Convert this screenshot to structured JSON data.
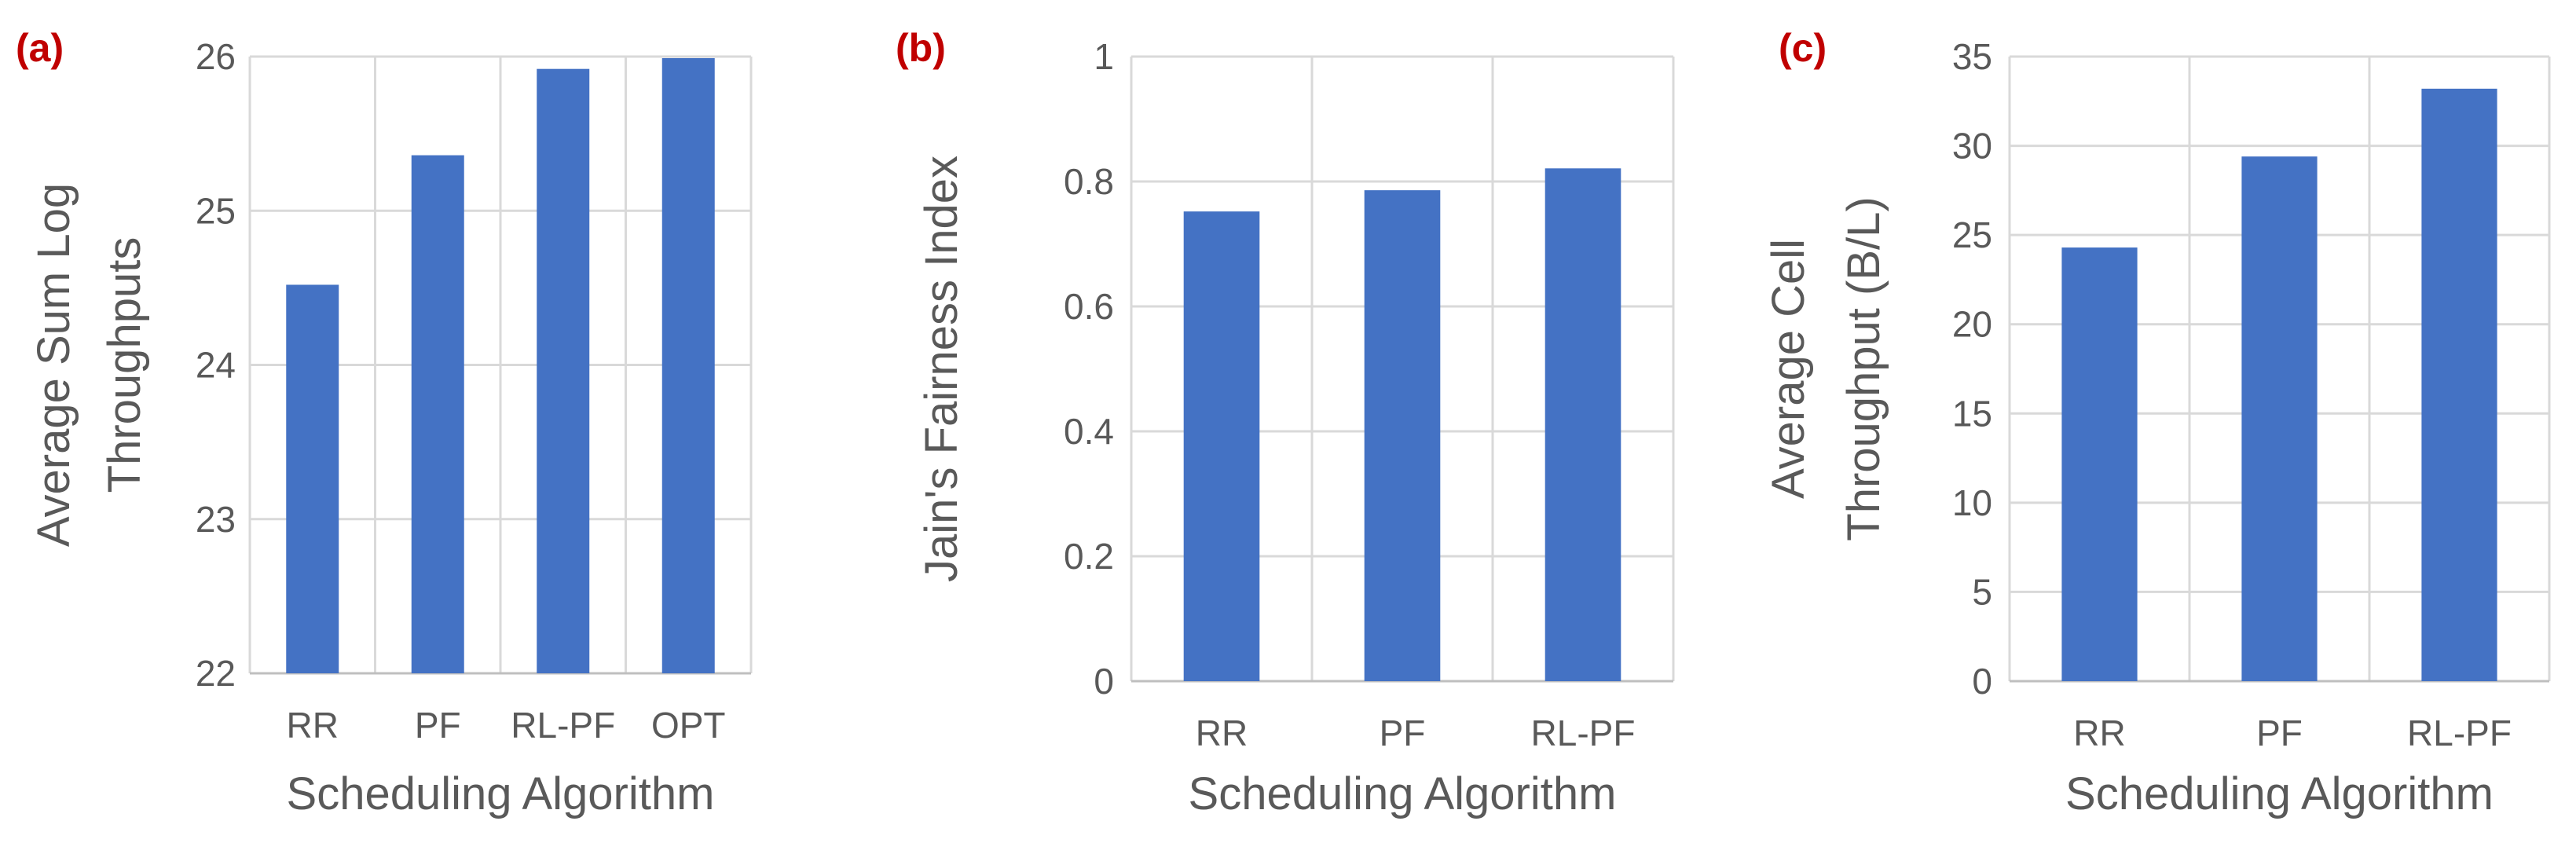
{
  "chart_data": [
    {
      "type": "bar",
      "panel_label": "(a)",
      "categories": [
        "RR",
        "PF",
        "RL-PF",
        "OPT"
      ],
      "values": [
        24.52,
        25.36,
        25.92,
        25.99
      ],
      "title": "",
      "xlabel": "Scheduling Algorithm",
      "ylabel_lines": [
        "Average Sum Log",
        "Throughputs"
      ],
      "ylim": [
        22,
        26
      ],
      "yticks": [
        "22",
        "23",
        "24",
        "25",
        "26"
      ],
      "grid": true,
      "color": "#4472C4"
    },
    {
      "type": "bar",
      "panel_label": "(b)",
      "categories": [
        "RR",
        "PF",
        "RL-PF"
      ],
      "values": [
        0.752,
        0.786,
        0.821
      ],
      "title": "",
      "xlabel": "Scheduling Algorithm",
      "ylabel_lines": [
        "Jain's Fairness Index"
      ],
      "ylim": [
        0,
        1
      ],
      "yticks": [
        "0",
        "0.2",
        "0.4",
        "0.6",
        "0.8",
        "1"
      ],
      "grid": true,
      "color": "#4472C4"
    },
    {
      "type": "bar",
      "panel_label": "(c)",
      "categories": [
        "RR",
        "PF",
        "RL-PF"
      ],
      "values": [
        24.3,
        29.4,
        33.2
      ],
      "title": "",
      "xlabel": "Scheduling Algorithm",
      "ylabel_lines": [
        "Average Cell",
        "Throughput (B/L)"
      ],
      "ylim": [
        0,
        35
      ],
      "yticks": [
        "0",
        "5",
        "10",
        "15",
        "20",
        "25",
        "30",
        "35"
      ],
      "grid": true,
      "color": "#4472C4"
    }
  ]
}
